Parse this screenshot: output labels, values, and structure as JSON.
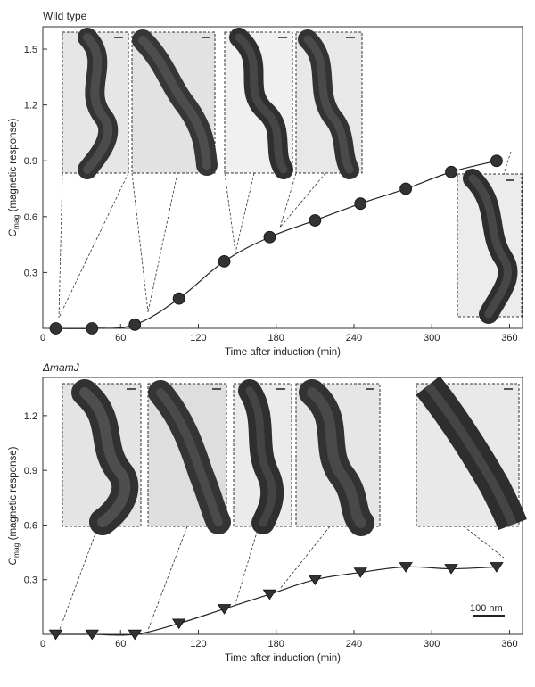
{
  "figure": {
    "scale_bar_label": "100 nm"
  },
  "chart_data": [
    {
      "type": "line",
      "panel_label": "Wild type",
      "xlabel": "Time after induction (min)",
      "ylabel_main": "C",
      "ylabel_sub": "mag",
      "ylabel_rest": " (magnetic response)",
      "xlim": [
        0,
        370
      ],
      "ylim": [
        0,
        1.62
      ],
      "xticks": [
        0,
        60,
        120,
        180,
        240,
        300,
        360
      ],
      "yticks": [
        0.3,
        0.6,
        0.9,
        1.2,
        1.5
      ],
      "marker": "circle",
      "series": [
        {
          "x": [
            10,
            38,
            71,
            105,
            140,
            175,
            210,
            245,
            280,
            315,
            350
          ],
          "y": [
            0.0,
            0.0,
            0.02,
            0.16,
            0.36,
            0.49,
            0.58,
            0.67,
            0.75,
            0.84,
            0.9
          ]
        }
      ],
      "grid": false
    },
    {
      "type": "line",
      "panel_label": "ΔmamJ",
      "xlabel": "Time after induction (min)",
      "ylabel_main": "C",
      "ylabel_sub": "mag",
      "ylabel_rest": " (magnetic response)",
      "xlim": [
        0,
        370
      ],
      "ylim": [
        0,
        1.41
      ],
      "xticks": [
        0,
        60,
        120,
        180,
        240,
        300,
        360
      ],
      "yticks": [
        0.3,
        0.6,
        0.9,
        1.2
      ],
      "marker": "triangle-down",
      "series": [
        {
          "x": [
            10,
            38,
            71,
            105,
            140,
            175,
            210,
            245,
            280,
            315,
            350
          ],
          "y": [
            0.0,
            0.0,
            0.0,
            0.06,
            0.14,
            0.22,
            0.3,
            0.34,
            0.37,
            0.36,
            0.37
          ]
        }
      ],
      "grid": false
    }
  ]
}
